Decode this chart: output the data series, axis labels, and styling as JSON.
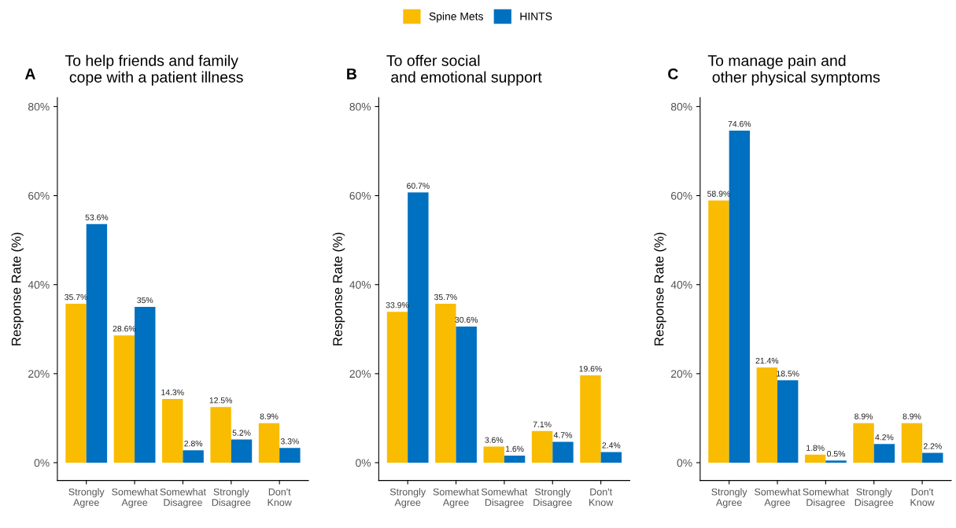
{
  "chart_data": [
    {
      "type": "bar",
      "title": "To help friends and family\n cope with a patient illness",
      "ylabel": "Response Rate (%)",
      "annotations": [
        "A"
      ],
      "categories": [
        "Strongly\nAgree",
        "Somewhat\nAgree",
        "Somewhat\nDisagree",
        "Strongly\nDisagree",
        "Don't\nKnow"
      ],
      "series": [
        {
          "name": "Spine Mets",
          "color": "#f9bc00",
          "values": [
            35.7,
            28.6,
            14.3,
            12.5,
            8.9
          ],
          "value_labels": [
            "35.7%",
            "28.6%",
            "14.3%",
            "12.5%",
            "8.9%"
          ]
        },
        {
          "name": "HINTS",
          "color": "#0070c0",
          "values": [
            53.6,
            35,
            2.8,
            5.2,
            3.3
          ],
          "value_labels": [
            "53.6%",
            "35%",
            "2.8%",
            "5.2%",
            "3.3%"
          ]
        }
      ],
      "ylim": [
        -4,
        82
      ],
      "yticks": [
        {
          "value": 0,
          "label": "0%"
        },
        {
          "value": 20,
          "label": "20%"
        },
        {
          "value": 40,
          "label": "40%"
        },
        {
          "value": 60,
          "label": "60%"
        },
        {
          "value": 80,
          "label": "80%"
        }
      ],
      "grid": false,
      "legend": "top"
    },
    {
      "type": "bar",
      "title": "To offer social\n and emotional support",
      "ylabel": "Response Rate (%)",
      "annotations": [
        "B"
      ],
      "categories": [
        "Strongly\nAgree",
        "Somewhat\nAgree",
        "Somewhat\nDisagree",
        "Strongly\nDisagree",
        "Don't\nKnow"
      ],
      "series": [
        {
          "color": "#f9bc00",
          "values": [
            33.9,
            35.7,
            3.6,
            7.1,
            19.6
          ],
          "value_labels": [
            "33.9%",
            "35.7%",
            "3.6%",
            "7.1%",
            "19.6%"
          ]
        },
        {
          "color": "#0070c0",
          "values": [
            60.7,
            30.6,
            1.6,
            4.7,
            2.4
          ],
          "value_labels": [
            "60.7%",
            "30.6%",
            "1.6%",
            "4.7%",
            "2.4%"
          ]
        }
      ],
      "ylim": [
        -4,
        82
      ],
      "yticks": [
        {
          "value": 0,
          "label": "0%"
        },
        {
          "value": 20,
          "label": "20%"
        },
        {
          "value": 40,
          "label": "40%"
        },
        {
          "value": 60,
          "label": "60%"
        },
        {
          "value": 80,
          "label": "80%"
        }
      ],
      "grid": false
    },
    {
      "type": "bar",
      "title": "To manage pain and\n other physical symptoms",
      "ylabel": "Response Rate (%)",
      "annotations": [
        "C"
      ],
      "categories": [
        "Strongly\nAgree",
        "Somewhat\nAgree",
        "Somewhat\nDisagree",
        "Strongly\nDisagree",
        "Don't\nKnow"
      ],
      "series": [
        {
          "color": "#f9bc00",
          "values": [
            58.9,
            21.4,
            1.8,
            8.9,
            8.9
          ],
          "value_labels": [
            "58.9%",
            "21.4%",
            "1.8%",
            "8.9%",
            "8.9%"
          ]
        },
        {
          "color": "#0070c0",
          "values": [
            74.6,
            18.5,
            0.5,
            4.2,
            2.2
          ],
          "value_labels": [
            "74.6%",
            "18.5%",
            "0.5%",
            "4.2%",
            "2.2%"
          ]
        }
      ],
      "ylim": [
        -4,
        82
      ],
      "yticks": [
        {
          "value": 0,
          "label": "0%"
        },
        {
          "value": 20,
          "label": "20%"
        },
        {
          "value": 40,
          "label": "40%"
        },
        {
          "value": 60,
          "label": "60%"
        },
        {
          "value": 80,
          "label": "80%"
        }
      ],
      "grid": false
    }
  ]
}
